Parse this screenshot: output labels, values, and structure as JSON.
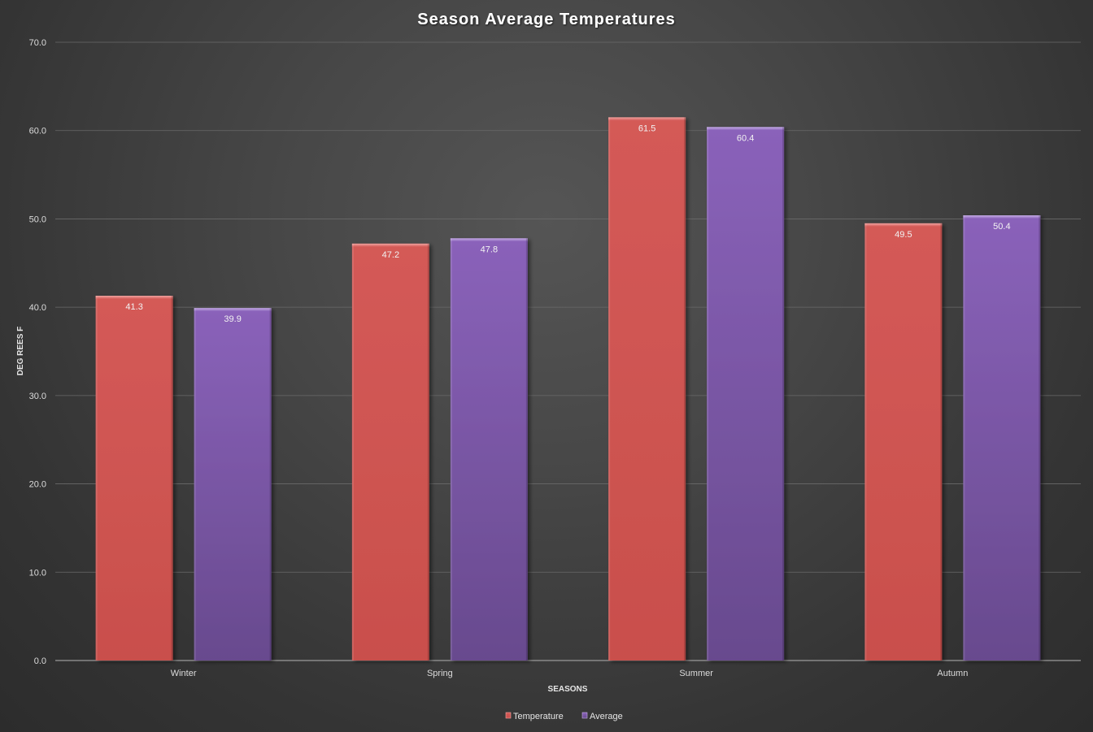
{
  "chart_data": {
    "type": "bar",
    "title": "Season Average Temperatures",
    "xlabel": "SEASONS",
    "ylabel": "DEG REES F",
    "categories": [
      "Winter",
      "Spring",
      "Summer",
      "Autumn"
    ],
    "series": [
      {
        "name": "Temperature",
        "values": [
          41.3,
          47.2,
          61.5,
          49.5
        ],
        "color": "#cf5653",
        "labels": [
          "41.3",
          "47.2",
          "61.5",
          "49.5"
        ]
      },
      {
        "name": "Average",
        "values": [
          39.9,
          47.8,
          60.4,
          50.4
        ],
        "color": "#7b57a3",
        "labels": [
          "39.9",
          "47.8",
          "60.4",
          "50.4"
        ]
      }
    ],
    "ylim": [
      0,
      70
    ],
    "yticks": [
      0,
      10,
      20,
      30,
      40,
      50,
      60,
      70
    ],
    "ytick_labels": [
      "0.0",
      "10.0",
      "20.0",
      "30.0",
      "40.0",
      "50.0",
      "60.0",
      "70.0"
    ],
    "grid": true,
    "legend_position": "bottom"
  }
}
